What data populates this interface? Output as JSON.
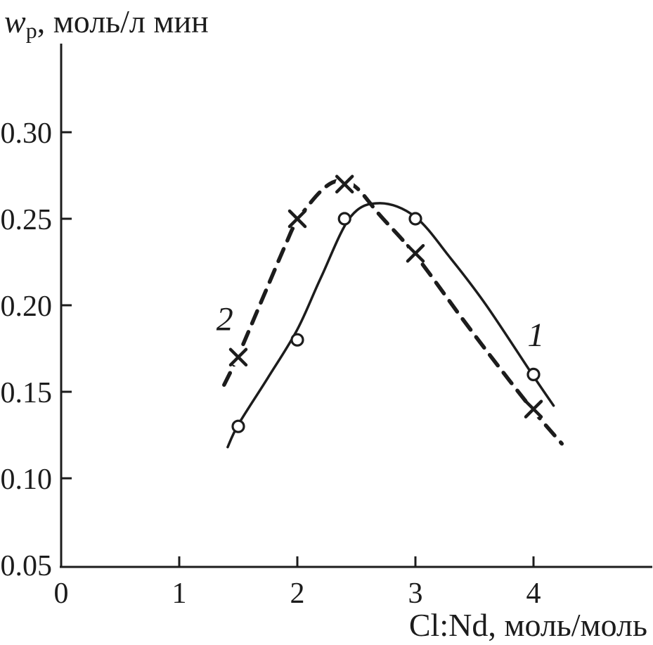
{
  "figure": {
    "background": "#ffffff",
    "ink": "#1c1c1c"
  },
  "chart_data": {
    "type": "line",
    "title": "",
    "ylabel_var": "w",
    "ylabel_sub": "p",
    "ylabel_rest": ", моль/л мин",
    "xlabel": "Cl:Nd, моль/моль",
    "xlim": [
      0,
      5
    ],
    "ylim": [
      0.05,
      0.33
    ],
    "grid": false,
    "legend": "none",
    "x_ticks": [
      {
        "v": 0,
        "label": "0"
      },
      {
        "v": 1,
        "label": "1"
      },
      {
        "v": 2,
        "label": "2"
      },
      {
        "v": 3,
        "label": "3"
      },
      {
        "v": 4,
        "label": "4"
      }
    ],
    "y_ticks": [
      {
        "v": 0.05,
        "label": "0.05"
      },
      {
        "v": 0.1,
        "label": "0.10"
      },
      {
        "v": 0.15,
        "label": "0.15"
      },
      {
        "v": 0.2,
        "label": "0.20"
      },
      {
        "v": 0.25,
        "label": "0.25"
      },
      {
        "v": 0.3,
        "label": "0.30"
      }
    ],
    "series": [
      {
        "name": "1",
        "marker": "circle",
        "line": "solid",
        "points": [
          [
            1.5,
            0.13
          ],
          [
            2.0,
            0.18
          ],
          [
            2.4,
            0.25
          ],
          [
            3.0,
            0.25
          ],
          [
            4.0,
            0.16
          ]
        ],
        "curve": [
          [
            1.41,
            0.118
          ],
          [
            1.5,
            0.131
          ],
          [
            1.75,
            0.158
          ],
          [
            2.0,
            0.186
          ],
          [
            2.2,
            0.216
          ],
          [
            2.45,
            0.251
          ],
          [
            2.7,
            0.259
          ],
          [
            3.0,
            0.251
          ],
          [
            3.3,
            0.227
          ],
          [
            3.6,
            0.2
          ],
          [
            4.0,
            0.159
          ],
          [
            4.17,
            0.142
          ]
        ],
        "label_at": [
          4.02,
          0.183
        ]
      },
      {
        "name": "2",
        "marker": "x",
        "line": "dashed",
        "points": [
          [
            1.5,
            0.17
          ],
          [
            2.0,
            0.25
          ],
          [
            2.4,
            0.27
          ],
          [
            3.0,
            0.23
          ],
          [
            4.0,
            0.14
          ]
        ],
        "curve": [
          [
            1.38,
            0.154
          ],
          [
            1.5,
            0.171
          ],
          [
            1.7,
            0.203
          ],
          [
            1.9,
            0.235
          ],
          [
            2.0,
            0.249
          ],
          [
            2.2,
            0.266
          ],
          [
            2.35,
            0.272
          ],
          [
            2.5,
            0.268
          ],
          [
            2.7,
            0.252
          ],
          [
            3.0,
            0.229
          ],
          [
            3.4,
            0.192
          ],
          [
            3.7,
            0.165
          ],
          [
            4.0,
            0.139
          ],
          [
            4.24,
            0.12
          ]
        ],
        "label_at": [
          1.385,
          0.192
        ]
      }
    ]
  }
}
